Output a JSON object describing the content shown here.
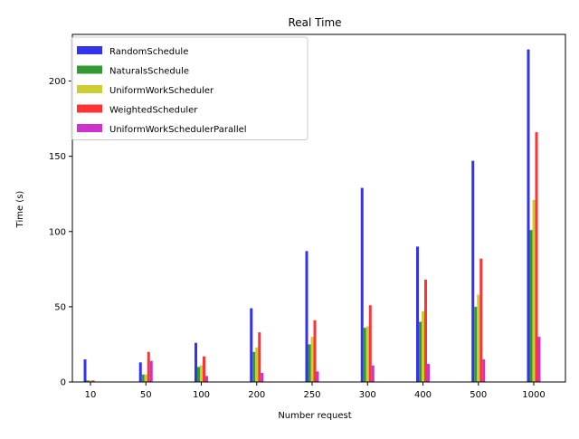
{
  "chart_data": {
    "type": "bar",
    "title": "Real Time",
    "xlabel": "Number request",
    "ylabel": "Time (s)",
    "categories": [
      "10",
      "50",
      "100",
      "200",
      "250",
      "300",
      "400",
      "500",
      "1000"
    ],
    "ylim": [
      0,
      231
    ],
    "yticks": [
      0,
      50,
      100,
      150,
      200
    ],
    "legend_position": "upper-left",
    "series": [
      {
        "name": "RandomSchedule",
        "color": "#3333ee",
        "values": [
          15,
          13,
          26,
          49,
          87,
          129,
          90,
          147,
          221
        ]
      },
      {
        "name": "NaturalsSchedule",
        "color": "#339933",
        "values": [
          1,
          5,
          10,
          20,
          25,
          36,
          40,
          50,
          101
        ]
      },
      {
        "name": "UniformWorkScheduler",
        "color": "#cccc33",
        "values": [
          1,
          5,
          11,
          23,
          30,
          37,
          47,
          58,
          121
        ]
      },
      {
        "name": "WeightedScheduler",
        "color": "#ff3333",
        "values": [
          1,
          20,
          17,
          33,
          41,
          51,
          68,
          82,
          166
        ]
      },
      {
        "name": "UniformWorkSchedulerParallel",
        "color": "#cc33cc",
        "values": [
          0,
          14,
          4,
          6,
          7,
          11,
          12,
          15,
          30
        ]
      }
    ]
  }
}
